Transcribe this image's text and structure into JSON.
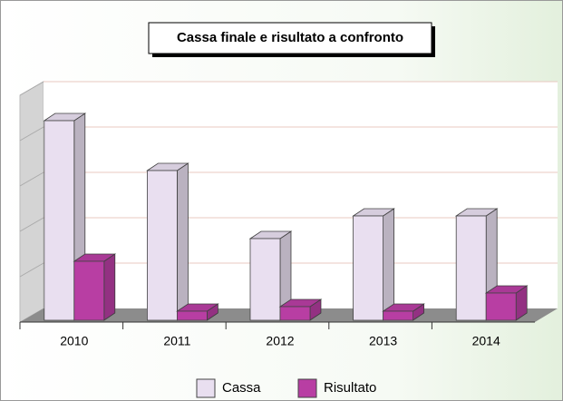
{
  "chart_data": {
    "type": "bar3d",
    "title": "Cassa finale e risultato a confronto",
    "categories": [
      "2010",
      "2011",
      "2012",
      "2013",
      "2014"
    ],
    "series": [
      {
        "name": "Cassa",
        "color": "#e9dff0",
        "values": [
          4.4,
          3.3,
          1.8,
          2.3,
          2.3
        ]
      },
      {
        "name": "Risultato",
        "color": "#b83ea3",
        "values": [
          1.3,
          0.2,
          0.3,
          0.2,
          0.6
        ]
      }
    ],
    "ylim": [
      0,
      5
    ],
    "grid_lines": [
      1,
      2,
      3,
      4,
      5
    ],
    "grid": true,
    "legend": "bottom"
  }
}
